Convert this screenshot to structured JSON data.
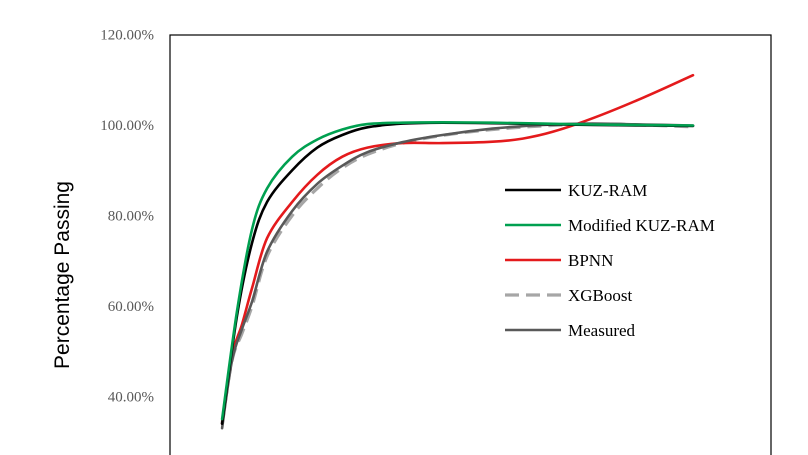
{
  "chart_data": {
    "type": "line",
    "title": "",
    "xlabel": "",
    "ylabel": "Percentage Passing",
    "ylim": [
      40,
      120
    ],
    "y_ticks": [
      "40.00%",
      "60.00%",
      "80.00%",
      "100.00%",
      "120.00%"
    ],
    "y_tick_values": [
      40,
      60,
      80,
      100,
      120
    ],
    "grid": false,
    "legend_position": "right",
    "series": [
      {
        "name": "KUZ-RAM",
        "color": "#000000",
        "dash": false,
        "x": [
          0.06,
          0.09,
          0.12,
          0.15,
          0.2,
          0.25,
          0.3,
          0.35,
          0.42,
          0.5,
          0.6,
          0.7,
          0.8,
          0.9,
          1.0
        ],
        "y": [
          34,
          58,
          74,
          83,
          90,
          95,
          97.8,
          99.5,
          100.3,
          100.5,
          100.4,
          100.2,
          100,
          99.9,
          99.8
        ]
      },
      {
        "name": "Modified KUZ-RAM",
        "color": "#00A050",
        "dash": false,
        "x": [
          0.06,
          0.09,
          0.12,
          0.15,
          0.2,
          0.25,
          0.3,
          0.35,
          0.42,
          0.5,
          0.6,
          0.7,
          0.8,
          0.9,
          1.0
        ],
        "y": [
          35,
          59,
          77,
          86,
          93,
          96.8,
          99,
          100.2,
          100.5,
          100.6,
          100.5,
          100.3,
          100.1,
          100,
          99.9
        ]
      },
      {
        "name": "BPNN",
        "color": "#E41A1C",
        "dash": false,
        "x": [
          0.06,
          0.08,
          0.1,
          0.12,
          0.15,
          0.2,
          0.25,
          0.3,
          0.35,
          0.42,
          0.5,
          0.6,
          0.66,
          0.72,
          0.8,
          0.9,
          1.0
        ],
        "y": [
          34,
          49,
          56,
          64,
          75,
          83,
          89,
          93,
          95,
          96,
          96,
          96.3,
          97,
          98.5,
          101.5,
          106,
          111
        ]
      },
      {
        "name": "XGBoost",
        "color": "#A6A6A6",
        "dash": true,
        "x": [
          0.06,
          0.08,
          0.1,
          0.12,
          0.15,
          0.2,
          0.25,
          0.3,
          0.35,
          0.42,
          0.5,
          0.6,
          0.7,
          0.8,
          0.9,
          1.0
        ],
        "y": [
          34,
          48,
          54,
          60,
          71,
          80,
          86,
          90.5,
          93.5,
          96,
          97.7,
          99,
          99.8,
          100.2,
          100,
          99.6
        ]
      },
      {
        "name": "Measured",
        "color": "#595959",
        "dash": false,
        "x": [
          0.06,
          0.08,
          0.1,
          0.12,
          0.15,
          0.2,
          0.25,
          0.3,
          0.35,
          0.42,
          0.5,
          0.6,
          0.7,
          0.8,
          0.9,
          1.0
        ],
        "y": [
          33,
          48,
          55,
          61,
          72,
          81,
          87,
          91,
          94,
          96.2,
          97.8,
          99.2,
          100,
          100.3,
          100.1,
          99.9
        ]
      }
    ]
  }
}
